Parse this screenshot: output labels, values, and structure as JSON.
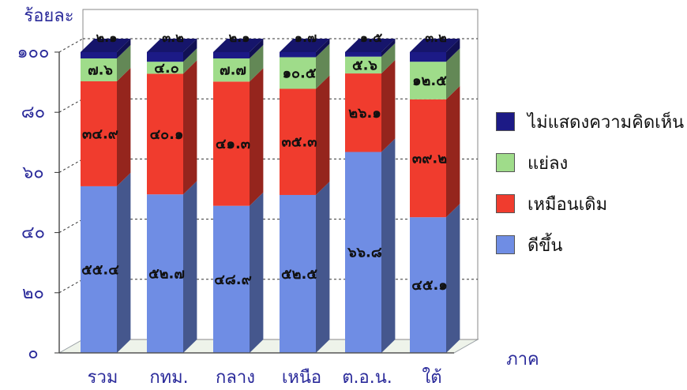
{
  "chart_data": {
    "type": "bar",
    "stacked": true,
    "three_d": true,
    "ylabel": "ร้อยละ",
    "xlabel": "ภาค",
    "ylim": [
      0,
      100
    ],
    "y_ticks": [
      "๐",
      "๒๐",
      "๔๐",
      "๖๐",
      "๘๐",
      "๑๐๐"
    ],
    "y_tick_values": [
      0,
      20,
      40,
      60,
      80,
      100
    ],
    "categories": [
      "รวม",
      "กทม.",
      "กลาง",
      "เหนือ",
      "ต.อ.น.",
      "ใต้"
    ],
    "series": [
      {
        "name": "ดีขึ้น",
        "values": [
          55.4,
          52.7,
          48.9,
          52.5,
          66.8,
          45.1
        ],
        "labels": [
          "๕๕.๔",
          "๕๒.๗",
          "๔๘.๙",
          "๕๒.๕",
          "๖๖.๘",
          "๔๕.๑"
        ],
        "color": "#6f8de4"
      },
      {
        "name": "เหมือนเดิม",
        "values": [
          34.9,
          40.1,
          41.3,
          35.3,
          26.1,
          39.2
        ],
        "labels": [
          "๓๔.๙",
          "๔๐.๑",
          "๔๑.๓",
          "๓๕.๓",
          "๒๖.๑",
          "๓๙.๒"
        ],
        "color": "#f03c2e"
      },
      {
        "name": "แย่ลง",
        "values": [
          7.6,
          4.0,
          7.7,
          10.5,
          5.6,
          12.5
        ],
        "labels": [
          "๗.๖",
          "๔.๐",
          "๗.๗",
          "๑๐.๕",
          "๕.๖",
          "๑๒.๕"
        ],
        "color": "#9fdc8a"
      },
      {
        "name": "ไม่แสดงความคิดเห็น",
        "values": [
          2.1,
          3.2,
          2.1,
          1.7,
          1.5,
          3.2
        ],
        "labels": [
          "๒.๑",
          "๓.๒",
          "๒.๑",
          "๑.๗",
          "๑.๕",
          "๓.๒"
        ],
        "color": "#1c1a86"
      }
    ],
    "legend_position": "right",
    "grid": true
  },
  "legend": {
    "items": [
      {
        "label": "ไม่แสดงความคิดเห็น",
        "color": "#1c1a86"
      },
      {
        "label": "แย่ลง",
        "color": "#9fdc8a"
      },
      {
        "label": "เหมือนเดิม",
        "color": "#f03c2e"
      },
      {
        "label": "ดีขึ้น",
        "color": "#6f8de4"
      }
    ]
  }
}
